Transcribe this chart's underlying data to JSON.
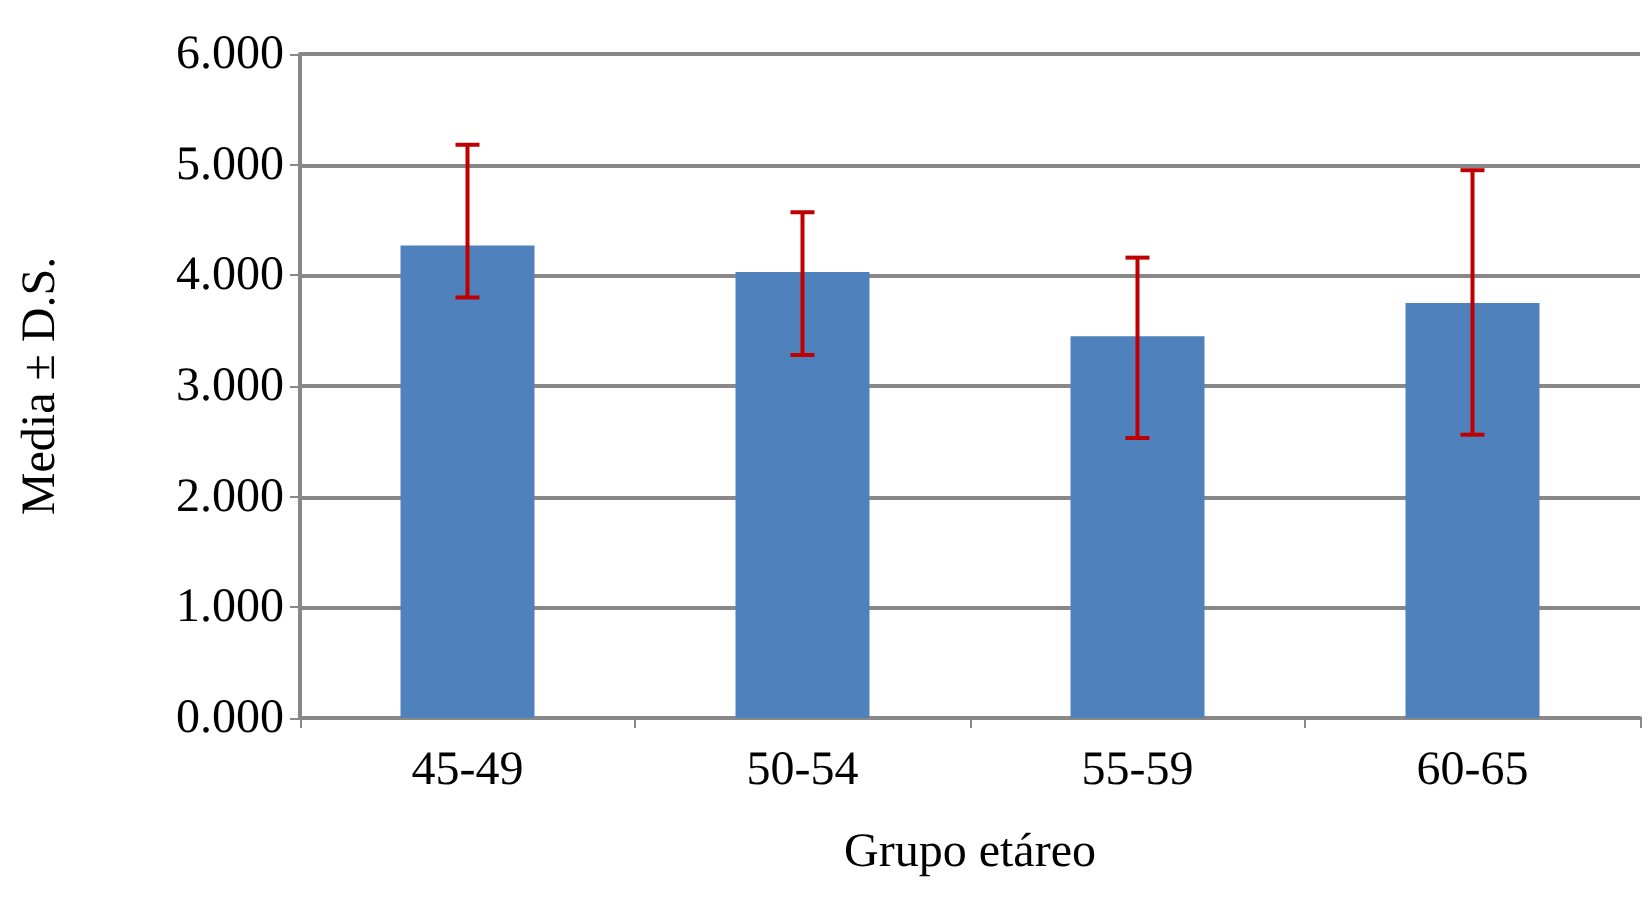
{
  "chart_data": {
    "type": "bar",
    "xlabel": "Grupo etáreo",
    "ylabel": "Media ± D.S.",
    "categories": [
      "45-49",
      "50-54",
      "55-59",
      "60-65"
    ],
    "series": [
      {
        "color": "#4f81bd",
        "values": [
          4.27,
          4.03,
          3.45,
          3.75
        ],
        "errors": [
          [
            3.8,
            5.18
          ],
          [
            3.28,
            4.57
          ],
          [
            2.53,
            4.16
          ],
          [
            2.56,
            4.95
          ]
        ]
      }
    ],
    "ylim": [
      0,
      6
    ],
    "yticks": [
      {
        "value": 0,
        "label": "0.000"
      },
      {
        "value": 1,
        "label": "1.000"
      },
      {
        "value": 2,
        "label": "2.000"
      },
      {
        "value": 3,
        "label": "3.000"
      },
      {
        "value": 4,
        "label": "4.000"
      },
      {
        "value": 5,
        "label": "5.000"
      },
      {
        "value": 6,
        "label": "6.000"
      }
    ],
    "grid": "y"
  }
}
